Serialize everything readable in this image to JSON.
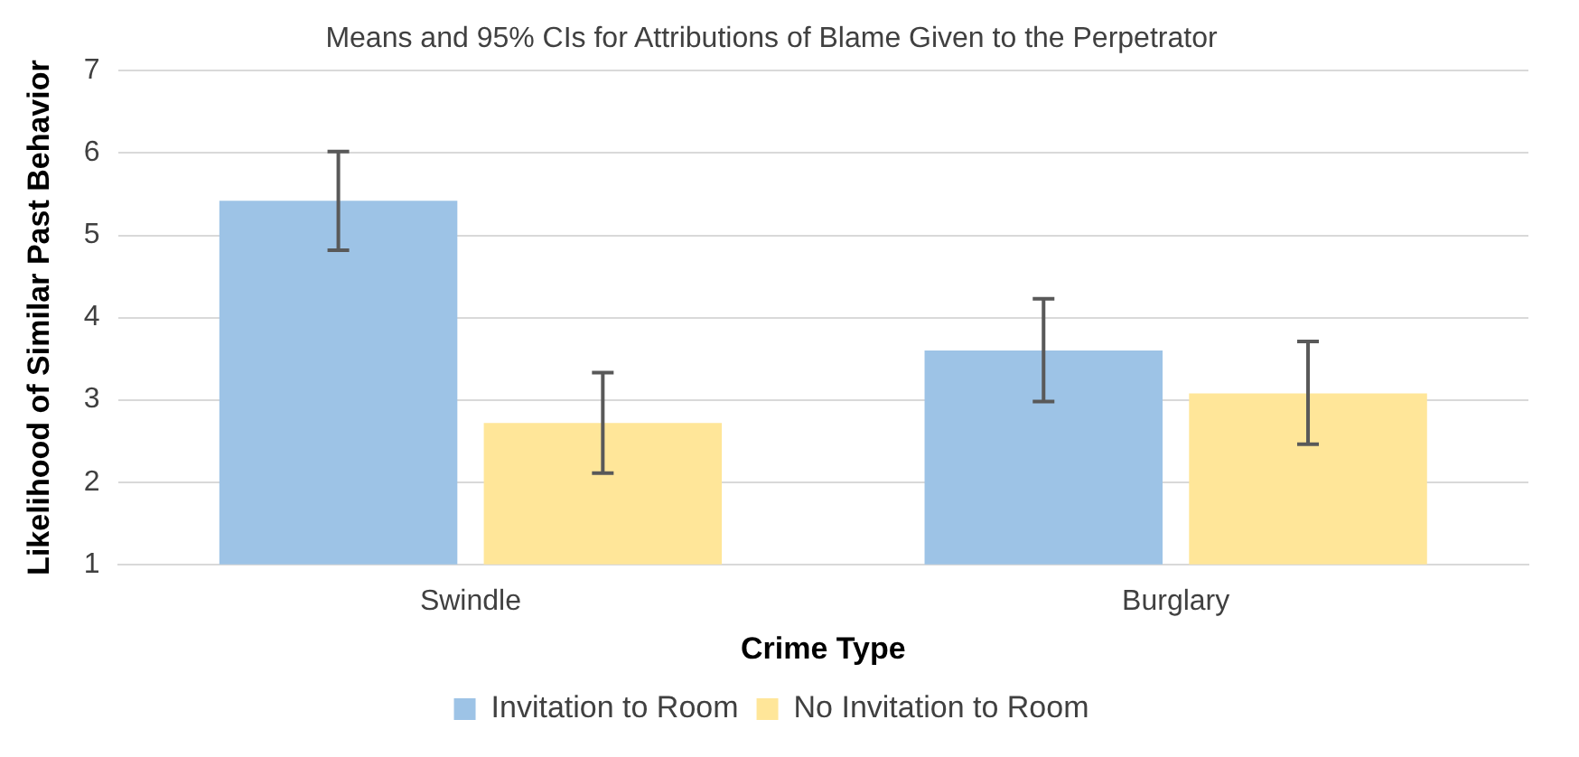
{
  "chart_data": {
    "type": "bar",
    "title": "Means and 95% CIs for Attributions of Blame Given to the Perpetrator",
    "xlabel": "Crime Type",
    "ylabel": "Likelihood of Similar Past Behavior",
    "categories": [
      "Swindle",
      "Burglary"
    ],
    "series": [
      {
        "name": "Invitation to Room",
        "color": "#9dc3e6",
        "values": [
          5.42,
          3.6
        ],
        "errors": [
          [
            4.82,
            6.02
          ],
          [
            2.98,
            4.23
          ]
        ]
      },
      {
        "name": "No Invitation to Room",
        "color": "#ffe699",
        "values": [
          2.72,
          3.08
        ],
        "errors": [
          [
            2.11,
            3.33
          ],
          [
            2.46,
            3.71
          ]
        ]
      }
    ],
    "ylim": [
      1,
      7
    ],
    "yticks": [
      1,
      2,
      3,
      4,
      5,
      6,
      7
    ],
    "grid": "y",
    "legend": "bottom"
  }
}
